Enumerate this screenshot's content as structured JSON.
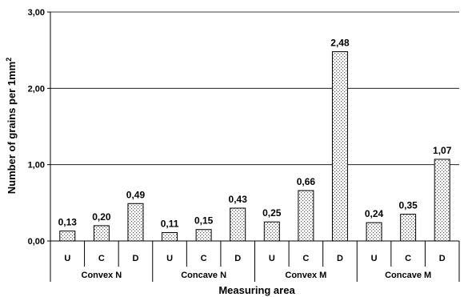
{
  "chart_data": {
    "type": "bar",
    "ylabel_main": "Number of grains per 1mm",
    "ylabel_sup": "2",
    "xlabel": "Measuring area",
    "ylim": [
      0,
      3
    ],
    "yticks": [
      "0,00",
      "1,00",
      "2,00",
      "3,00"
    ],
    "ytick_values": [
      0,
      1,
      2,
      3
    ],
    "grid": true,
    "bar_pattern": "dotted",
    "groups": [
      {
        "name": "Convex  N",
        "categories": [
          "U",
          "C",
          "D"
        ],
        "values": [
          0.13,
          0.2,
          0.49
        ],
        "labels": [
          "0,13",
          "0,20",
          "0,49"
        ]
      },
      {
        "name": "Concave N",
        "categories": [
          "U",
          "C",
          "D"
        ],
        "values": [
          0.11,
          0.15,
          0.43
        ],
        "labels": [
          "0,11",
          "0,15",
          "0,43"
        ]
      },
      {
        "name": "Convex M",
        "categories": [
          "U",
          "C",
          "D"
        ],
        "values": [
          0.25,
          0.66,
          2.48
        ],
        "labels": [
          "0,25",
          "0,66",
          "2,48"
        ]
      },
      {
        "name": "Concave M",
        "categories": [
          "U",
          "C",
          "D"
        ],
        "values": [
          0.24,
          0.35,
          1.07
        ],
        "labels": [
          "0,24",
          "0,35",
          "1,07"
        ]
      }
    ]
  }
}
